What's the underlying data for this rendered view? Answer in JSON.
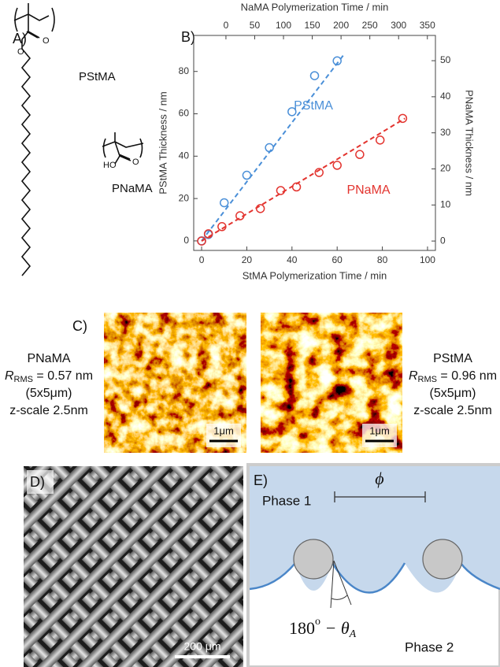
{
  "panel_a": {
    "label": "A)",
    "monomer_1": "PStMA",
    "monomer_2": "PNaMA",
    "oxygen_1": "O",
    "oxygen_2": "O",
    "hydroxyl": "HO",
    "oxygen_3": "O"
  },
  "panel_b_label": "B)",
  "chart_data": {
    "type": "scatter",
    "x_label": "StMA Polymerization Time / min",
    "x2_label": "NaMA Polymerization Time / min",
    "y_label": "PStMA Thickness / nm",
    "y2_label": "PNaMA Thickness / nm",
    "xlim": [
      -3.5,
      103.5
    ],
    "xticks": [
      0,
      20,
      40,
      60,
      80,
      100
    ],
    "x2lim": [
      -56,
      364
    ],
    "x2ticks": [
      0,
      50,
      100,
      150,
      200,
      250,
      300,
      350
    ],
    "ylim": [
      -4.5,
      97
    ],
    "yticks": [
      0,
      20,
      40,
      60,
      80
    ],
    "y2lim": [
      -2.6,
      57
    ],
    "y2ticks": [
      0,
      10,
      20,
      30,
      40,
      50
    ],
    "series": [
      {
        "name": "PStMA",
        "color": "#4a8fd8",
        "x": [
          0,
          3,
          10,
          20,
          30,
          40,
          50,
          60
        ],
        "values": [
          0,
          3,
          18,
          31,
          44,
          61,
          78,
          85
        ]
      },
      {
        "name": "PNaMA",
        "color": "#e3342f",
        "axis": "y2",
        "x": [
          0,
          3,
          9,
          17,
          26,
          35,
          42,
          52,
          60,
          70,
          79,
          89
        ],
        "values": [
          0,
          2,
          4,
          7,
          9,
          14,
          15,
          19,
          21,
          24,
          28,
          34
        ]
      }
    ],
    "fits": [
      {
        "color": "#4a8fd8",
        "x": [
          0,
          63
        ],
        "values": [
          0,
          88
        ]
      },
      {
        "color": "#e3342f",
        "axis": "y2",
        "x": [
          0,
          90
        ],
        "values": [
          0,
          34
        ]
      }
    ]
  },
  "panel_c": {
    "label": "C)",
    "left": {
      "name": "PNaMA",
      "symbol": "R",
      "subscript": "RMS",
      "value": " = 0.57 nm",
      "size": "(5x5μm)",
      "zscale": "z-scale 2.5nm",
      "scale_bar": "1μm"
    },
    "right": {
      "name": "PStMA",
      "symbol": "R",
      "subscript": "RMS",
      "value": " = 0.96 nm",
      "size": "(5x5μm)",
      "zscale": "z-scale 2.5nm",
      "scale_bar": "1μm"
    }
  },
  "panel_d": {
    "label": "D)",
    "scale_bar": "200 μm"
  },
  "panel_e": {
    "label": "E)",
    "phase_1": "Phase 1",
    "phase_2": "Phase 2",
    "spacing": "ϕ",
    "angle": {
      "base": "180",
      "sup": "o",
      "rest": " − θ",
      "sub": "A"
    }
  }
}
